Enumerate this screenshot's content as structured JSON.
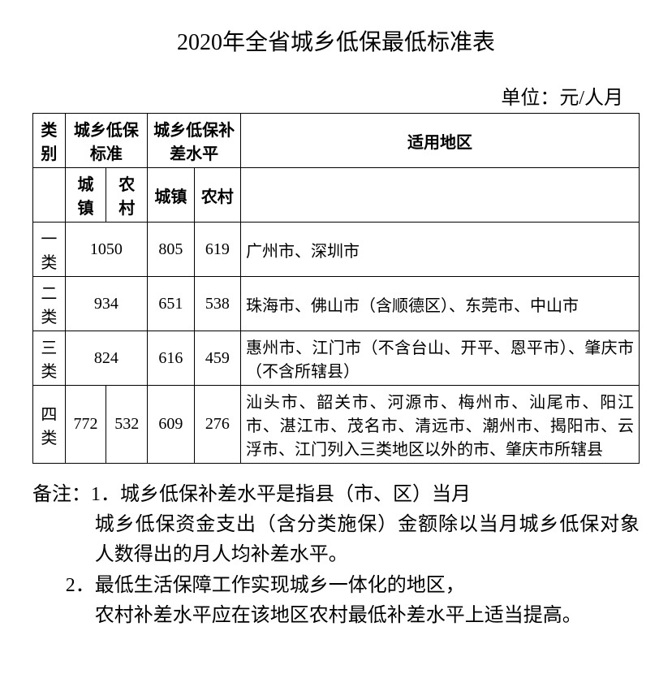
{
  "title": "2020年全省城乡低保最低标准表",
  "unit_label": "单位：元/人月",
  "table": {
    "headers": {
      "category": "类别",
      "standard": "城乡低保标准",
      "subsidy": "城乡低保补差水平",
      "region": "适用地区",
      "urban": "城镇",
      "rural": "农村"
    },
    "rows": [
      {
        "category": "一类",
        "standard_merged": "1050",
        "subsidy_urban": "805",
        "subsidy_rural": "619",
        "region": "广州市、深圳市"
      },
      {
        "category": "二类",
        "standard_merged": "934",
        "subsidy_urban": "651",
        "subsidy_rural": "538",
        "region": "珠海市、佛山市（含顺德区）、东莞市、中山市"
      },
      {
        "category": "三类",
        "standard_merged": "824",
        "subsidy_urban": "616",
        "subsidy_rural": "459",
        "region": "惠州市、江门市（不含台山、开平、恩平市）、肇庆市（不含所辖县）"
      },
      {
        "category": "四类",
        "standard_urban": "772",
        "standard_rural": "532",
        "subsidy_urban": "609",
        "subsidy_rural": "276",
        "region": "汕头市、韶关市、河源市、梅州市、汕尾市、阳江市、湛江市、茂名市、清远市、潮州市、揭阳市、云浮市、江门列入三类地区以外的市、肇庆市所辖县"
      }
    ]
  },
  "notes": {
    "label": "备注：",
    "items": [
      {
        "num": "1．",
        "line1": "城乡低保补差水平是指县（市、区）当月",
        "line2": "城乡低保资金支出（含分类施保）金额除以当月城乡低保对象人数得出的月人均补差水平。"
      },
      {
        "num": "2．",
        "line1": "最低生活保障工作实现城乡一体化的地区，",
        "line2": "农村补差水平应在该地区农村最低补差水平上适当提高。"
      }
    ]
  },
  "styling": {
    "background_color": "#ffffff",
    "text_color": "#000000",
    "border_color": "#000000",
    "title_fontsize": 28,
    "unit_fontsize": 24,
    "table_fontsize": 20,
    "notes_fontsize": 24,
    "font_family": "SimSun"
  }
}
